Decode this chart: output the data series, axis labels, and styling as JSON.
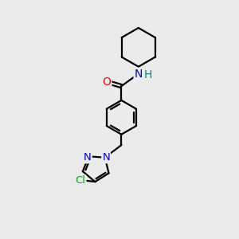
{
  "background_color": "#ebebeb",
  "bond_color": "#000000",
  "atom_colors": {
    "O": "#ff0000",
    "N": "#0000cc",
    "Cl": "#00aa00",
    "H": "#008888",
    "C": "#000000"
  },
  "figsize": [
    3.0,
    3.0
  ],
  "dpi": 100,
  "lw": 1.6,
  "fontsize": 9.5
}
